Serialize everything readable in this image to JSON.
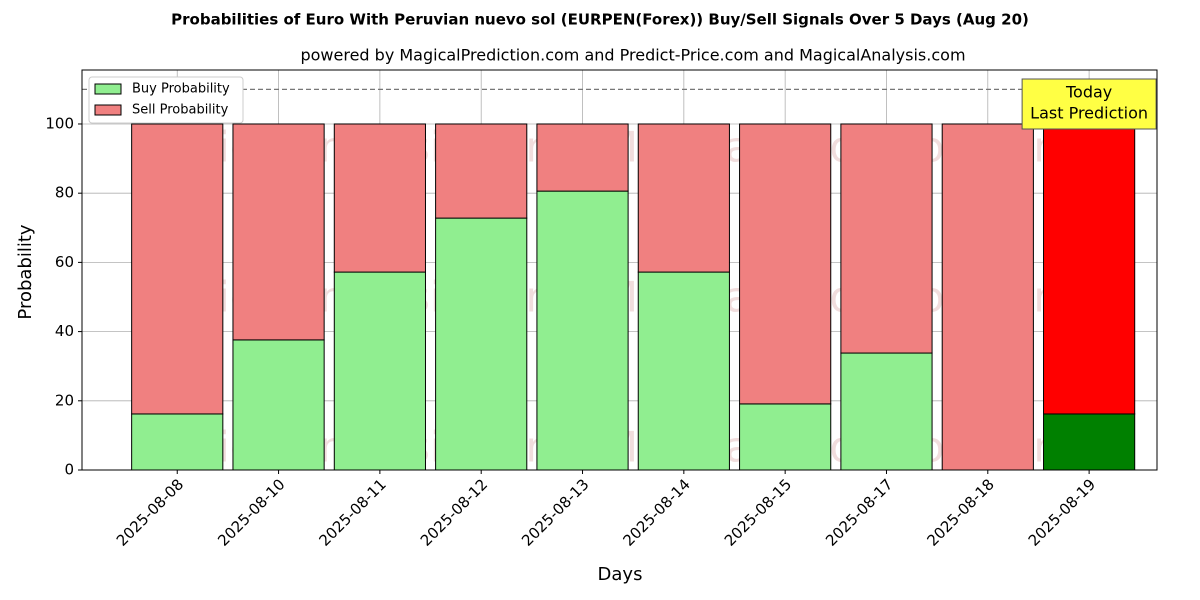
{
  "chart_data": {
    "type": "stacked_bar",
    "title": "Probabilities of Euro With Peruvian nuevo sol (EURPEN(Forex)) Buy/Sell Signals Over 5 Days (Aug 20)",
    "subtitle": "powered by MagicalPrediction.com and Predict-Price.com and MagicalAnalysis.com",
    "xlabel": "Days",
    "ylabel": "Probability",
    "categories": [
      "2025-08-08",
      "2025-08-10",
      "2025-08-11",
      "2025-08-12",
      "2025-08-13",
      "2025-08-14",
      "2025-08-15",
      "2025-08-17",
      "2025-08-18",
      "2025-08-19"
    ],
    "series": [
      {
        "name": "Buy Probability",
        "color": "#90ee90",
        "colors": [
          "#90ee90",
          "#90ee90",
          "#90ee90",
          "#90ee90",
          "#90ee90",
          "#90ee90",
          "#90ee90",
          "#90ee90",
          "#90ee90",
          "#008000"
        ],
        "values": [
          16.2,
          37.6,
          57.2,
          72.8,
          80.6,
          57.2,
          19.1,
          33.8,
          0,
          16.2
        ]
      },
      {
        "name": "Sell Probability",
        "color": "#f08080",
        "colors": [
          "#f08080",
          "#f08080",
          "#f08080",
          "#f08080",
          "#f08080",
          "#f08080",
          "#f08080",
          "#f08080",
          "#f08080",
          "#ff0000"
        ],
        "values": [
          83.8,
          62.4,
          42.8,
          27.2,
          19.4,
          42.8,
          80.9,
          66.2,
          100,
          83.8
        ]
      }
    ],
    "ylim": [
      0,
      115.6
    ],
    "yticks": [
      0,
      20,
      40,
      60,
      80,
      100
    ],
    "reference_line": 110,
    "annotation": [
      "Today",
      "Last Prediction"
    ],
    "watermarks": [
      "MagicalAnalysis.com",
      "MagicalPrediction.com"
    ],
    "grid": true,
    "legend": "upper left"
  }
}
